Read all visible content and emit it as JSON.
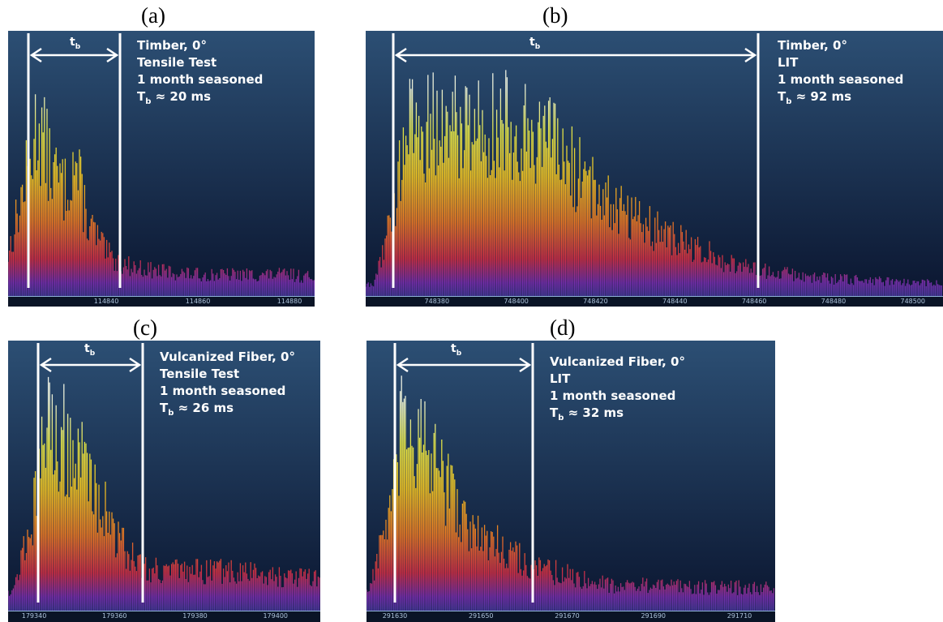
{
  "charts": [
    {
      "panel": "(a)",
      "tb_label": "t",
      "tb_sub": "b",
      "annotation": {
        "line1": "Timber, 0°",
        "line2": "Tensile Test",
        "line3": "1 month seasoned",
        "line4_prefix": "T",
        "line4_sub": "b",
        "line4_suffix": " ≈ 20 ms"
      },
      "x_ticks": [
        "114840",
        "114860",
        "114880"
      ],
      "chart_data": {
        "type": "area",
        "title": "",
        "xlabel": "",
        "ylabel": "",
        "t_start": 114823,
        "t_end": 114843,
        "xlim": [
          114817,
          114895
        ],
        "burst_duration_ms": 20,
        "envelope": [
          [
            114817,
            0.05
          ],
          [
            114823,
            0.6
          ],
          [
            114825,
            0.82
          ],
          [
            114828,
            0.6
          ],
          [
            114831,
            0.5
          ],
          [
            114833,
            0.64
          ],
          [
            114836,
            0.35
          ],
          [
            114840,
            0.2
          ],
          [
            114843,
            0.15
          ],
          [
            114850,
            0.12
          ],
          [
            114860,
            0.1
          ],
          [
            114880,
            0.1
          ],
          [
            114895,
            0.06
          ]
        ]
      }
    },
    {
      "panel": "(b)",
      "tb_label": "t",
      "tb_sub": "b",
      "annotation": {
        "line1": "Timber, 0°",
        "line2": "LIT",
        "line3": "1 month seasoned",
        "line4_prefix": "T",
        "line4_sub": "b",
        "line4_suffix": " ≈ 92 ms"
      },
      "x_ticks": [
        "748380",
        "748400",
        "748420",
        "748440",
        "748460",
        "748480",
        "748500"
      ],
      "chart_data": {
        "type": "area",
        "title": "",
        "xlabel": "",
        "ylabel": "",
        "t_start": 748369,
        "t_end": 748461,
        "xlim": [
          748364,
          748506
        ],
        "burst_duration_ms": 92,
        "envelope": [
          [
            748364,
            0.05
          ],
          [
            748369,
            0.4
          ],
          [
            748372,
            0.78
          ],
          [
            748390,
            0.82
          ],
          [
            748405,
            0.78
          ],
          [
            748412,
            0.64
          ],
          [
            748420,
            0.5
          ],
          [
            748428,
            0.4
          ],
          [
            748436,
            0.3
          ],
          [
            748445,
            0.22
          ],
          [
            748455,
            0.15
          ],
          [
            748461,
            0.12
          ],
          [
            748480,
            0.08
          ],
          [
            748506,
            0.06
          ]
        ]
      }
    },
    {
      "panel": "(c)",
      "tb_label": "t",
      "tb_sub": "b",
      "annotation": {
        "line1": "Vulcanized Fiber, 0°",
        "line2": "Tensile Test",
        "line3": "1 month seasoned",
        "line4_prefix": "T",
        "line4_sub": "b",
        "line4_suffix": " ≈ 26 ms"
      },
      "x_ticks": [
        "179340",
        "179360",
        "179380",
        "179400"
      ],
      "chart_data": {
        "type": "area",
        "title": "",
        "xlabel": "",
        "ylabel": "",
        "t_start": 179341,
        "t_end": 179367,
        "xlim": [
          179335,
          179408
        ],
        "burst_duration_ms": 26,
        "envelope": [
          [
            179335,
            0.1
          ],
          [
            179341,
            0.55
          ],
          [
            179343,
            0.88
          ],
          [
            179348,
            0.78
          ],
          [
            179353,
            0.65
          ],
          [
            179358,
            0.45
          ],
          [
            179362,
            0.3
          ],
          [
            179367,
            0.2
          ],
          [
            179375,
            0.18
          ],
          [
            179390,
            0.18
          ],
          [
            179408,
            0.15
          ]
        ]
      }
    },
    {
      "panel": "(d)",
      "tb_label": "t",
      "tb_sub": "b",
      "annotation": {
        "line1": "Vulcanized Fiber, 0°",
        "line2": "LIT",
        "line3": "1 month seasoned",
        "line4_prefix": "T",
        "line4_sub": "b",
        "line4_suffix": " ≈ 32 ms"
      },
      "x_ticks": [
        "291630",
        "291650",
        "291670",
        "291690",
        "291710"
      ],
      "chart_data": {
        "type": "area",
        "title": "",
        "xlabel": "",
        "ylabel": "",
        "t_start": 291630,
        "t_end": 291662,
        "xlim": [
          291624,
          291722
        ],
        "burst_duration_ms": 32,
        "envelope": [
          [
            291624,
            0.1
          ],
          [
            291630,
            0.55
          ],
          [
            291632,
            0.9
          ],
          [
            291638,
            0.7
          ],
          [
            291643,
            0.55
          ],
          [
            291648,
            0.35
          ],
          [
            291655,
            0.3
          ],
          [
            291662,
            0.2
          ],
          [
            291680,
            0.12
          ],
          [
            291722,
            0.1
          ]
        ]
      }
    }
  ],
  "colors": {
    "bg_top": "#2c4f74",
    "bg_bottom": "#0b1630",
    "axis_bar": "#0a1426",
    "tick_text": "#aec4dc",
    "marker": "#ffffff"
  }
}
